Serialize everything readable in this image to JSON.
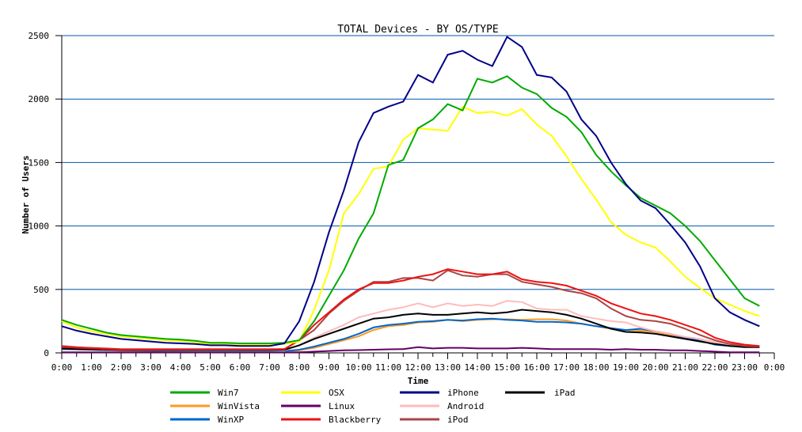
{
  "chart_data": {
    "type": "line",
    "title": "TOTAL Devices - BY OS/TYPE",
    "xlabel": "Time",
    "ylabel": "Number of Users",
    "ylim": [
      0,
      2500
    ],
    "yticks": [
      0,
      500,
      1000,
      1500,
      2000,
      2500
    ],
    "xlim_hours": [
      0,
      24
    ],
    "xtick_labels": [
      "0:00",
      "1:00",
      "2:00",
      "3:00",
      "4:00",
      "5:00",
      "6:00",
      "7:00",
      "8:00",
      "9:00",
      "10:00",
      "11:00",
      "12:00",
      "13:00",
      "14:00",
      "15:00",
      "16:00",
      "17:00",
      "18:00",
      "19:00",
      "20:00",
      "21:00",
      "22:00",
      "23:00",
      "0:00"
    ],
    "grid": true,
    "gridline_color": "#0055aa",
    "legend_position": "bottom",
    "x_hours": [
      0,
      0.5,
      1,
      1.5,
      2,
      2.5,
      3,
      3.5,
      4,
      4.5,
      5,
      5.5,
      6,
      6.5,
      7,
      7.5,
      8,
      8.5,
      9,
      9.5,
      10,
      10.5,
      11,
      11.5,
      12,
      12.5,
      13,
      13.5,
      14,
      14.5,
      15,
      15.5,
      16,
      16.5,
      17,
      17.5,
      18,
      18.5,
      19,
      19.5,
      20,
      20.5,
      21,
      21.5,
      22,
      22.5,
      23,
      23.5
    ],
    "series": [
      {
        "name": "Win7",
        "color": "#00aa00",
        "values": [
          260,
          220,
          190,
          160,
          140,
          130,
          120,
          110,
          105,
          95,
          80,
          80,
          75,
          75,
          75,
          80,
          100,
          250,
          450,
          650,
          900,
          1100,
          1480,
          1520,
          1770,
          1840,
          1960,
          1910,
          2160,
          2130,
          2180,
          2090,
          2040,
          1930,
          1860,
          1740,
          1560,
          1430,
          1320,
          1220,
          1160,
          1100,
          1000,
          880,
          730,
          580,
          430,
          370
        ]
      },
      {
        "name": "WinVista",
        "color": "#ff9922",
        "values": [
          30,
          28,
          25,
          22,
          20,
          18,
          16,
          15,
          15,
          14,
          14,
          13,
          13,
          13,
          13,
          14,
          20,
          40,
          70,
          100,
          130,
          180,
          210,
          220,
          240,
          245,
          260,
          250,
          260,
          265,
          265,
          260,
          265,
          265,
          255,
          230,
          210,
          190,
          180,
          175,
          165,
          140,
          120,
          95,
          70,
          55,
          50,
          45
        ]
      },
      {
        "name": "WinXP",
        "color": "#0066cc",
        "values": [
          30,
          28,
          25,
          22,
          20,
          18,
          16,
          15,
          15,
          14,
          14,
          13,
          13,
          13,
          13,
          14,
          25,
          50,
          80,
          110,
          150,
          200,
          220,
          230,
          245,
          250,
          260,
          255,
          265,
          270,
          260,
          255,
          245,
          245,
          240,
          230,
          210,
          195,
          180,
          190,
          170,
          150,
          120,
          95,
          65,
          55,
          50,
          45
        ]
      },
      {
        "name": "OSX",
        "color": "#ffff00",
        "values": [
          250,
          200,
          170,
          150,
          130,
          120,
          110,
          100,
          95,
          85,
          70,
          70,
          65,
          65,
          65,
          70,
          90,
          340,
          650,
          1100,
          1250,
          1450,
          1470,
          1680,
          1770,
          1760,
          1750,
          1940,
          1890,
          1900,
          1870,
          1920,
          1800,
          1710,
          1550,
          1370,
          1210,
          1030,
          930,
          870,
          830,
          720,
          600,
          510,
          430,
          380,
          330,
          290
        ]
      },
      {
        "name": "Linux",
        "color": "#660066",
        "values": [
          5,
          5,
          5,
          5,
          5,
          5,
          5,
          5,
          5,
          5,
          5,
          5,
          5,
          5,
          5,
          5,
          5,
          10,
          15,
          20,
          22,
          25,
          28,
          30,
          45,
          35,
          40,
          40,
          35,
          35,
          35,
          40,
          35,
          30,
          30,
          30,
          30,
          25,
          30,
          25,
          25,
          20,
          20,
          15,
          10,
          5,
          5,
          5
        ]
      },
      {
        "name": "Blackberry",
        "color": "#ee1111",
        "values": [
          50,
          40,
          35,
          30,
          25,
          25,
          25,
          25,
          25,
          25,
          25,
          25,
          25,
          25,
          25,
          30,
          100,
          220,
          320,
          420,
          500,
          550,
          550,
          570,
          600,
          620,
          660,
          640,
          620,
          620,
          640,
          580,
          560,
          550,
          530,
          490,
          450,
          390,
          350,
          310,
          290,
          260,
          220,
          180,
          120,
          85,
          65,
          55
        ]
      },
      {
        "name": "iPhone",
        "color": "#000088",
        "values": [
          210,
          175,
          150,
          130,
          110,
          100,
          90,
          80,
          75,
          70,
          60,
          60,
          55,
          55,
          55,
          75,
          250,
          560,
          950,
          1280,
          1660,
          1890,
          1940,
          1980,
          2190,
          2130,
          2350,
          2380,
          2310,
          2260,
          2490,
          2410,
          2190,
          2170,
          2060,
          1840,
          1710,
          1500,
          1330,
          1200,
          1140,
          1010,
          870,
          680,
          430,
          320,
          260,
          210
        ]
      },
      {
        "name": "Android",
        "color": "#ffbbbb",
        "values": [
          40,
          35,
          30,
          25,
          20,
          20,
          20,
          20,
          20,
          20,
          20,
          20,
          20,
          20,
          20,
          20,
          60,
          120,
          170,
          220,
          280,
          310,
          340,
          360,
          390,
          360,
          390,
          370,
          380,
          370,
          410,
          400,
          350,
          340,
          340,
          290,
          270,
          250,
          240,
          200,
          170,
          150,
          125,
          110,
          85,
          65,
          55,
          50
        ]
      },
      {
        "name": "iPod",
        "color": "#aa4444",
        "values": [
          55,
          45,
          40,
          35,
          30,
          30,
          30,
          30,
          30,
          30,
          30,
          30,
          30,
          30,
          30,
          30,
          100,
          180,
          310,
          410,
          490,
          560,
          560,
          590,
          590,
          570,
          650,
          610,
          600,
          620,
          620,
          560,
          540,
          520,
          490,
          470,
          430,
          350,
          290,
          260,
          250,
          230,
          190,
          140,
          100,
          70,
          55,
          50
        ]
      },
      {
        "name": "iPad",
        "color": "#000000",
        "values": [
          35,
          30,
          28,
          25,
          22,
          22,
          22,
          22,
          22,
          22,
          22,
          22,
          22,
          22,
          22,
          25,
          60,
          110,
          150,
          190,
          230,
          270,
          280,
          300,
          310,
          300,
          300,
          310,
          320,
          310,
          320,
          340,
          330,
          320,
          300,
          270,
          230,
          190,
          165,
          160,
          150,
          130,
          110,
          90,
          70,
          55,
          45,
          45
        ]
      }
    ]
  }
}
